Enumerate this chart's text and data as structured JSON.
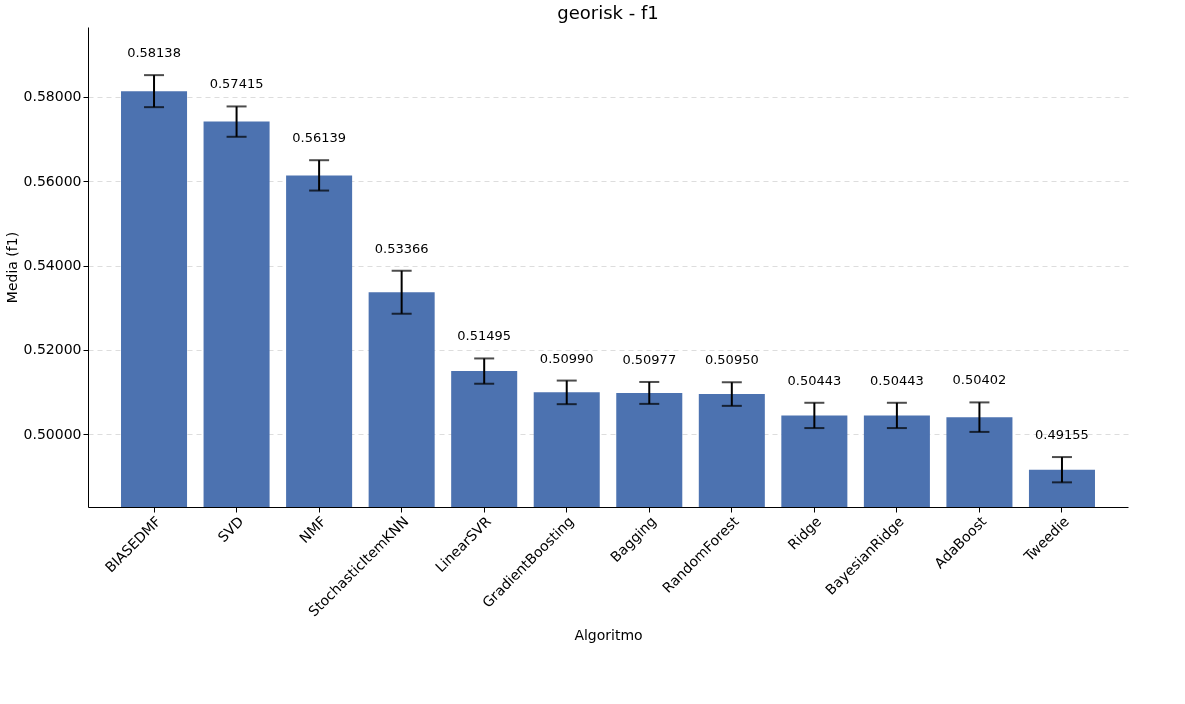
{
  "chart_data": {
    "type": "bar",
    "title": "georisk - f1",
    "xlabel": "Algoritmo",
    "ylabel": "Media (f1)",
    "categories": [
      "BIASEDMF",
      "SVD",
      "NMF",
      "StochasticItemKNN",
      "LinearSVR",
      "GradientBoosting",
      "Bagging",
      "RandomForest",
      "Ridge",
      "BayesianRidge",
      "AdaBoost",
      "Tweedie"
    ],
    "values": [
      0.58138,
      0.57415,
      0.56139,
      0.53366,
      0.51495,
      0.5099,
      0.50977,
      0.5095,
      0.50443,
      0.50443,
      0.50402,
      0.49155
    ],
    "errors": [
      0.0038,
      0.0036,
      0.0036,
      0.0051,
      0.003,
      0.0028,
      0.0026,
      0.0028,
      0.003,
      0.003,
      0.0035,
      0.003
    ],
    "color": "#4c72b0",
    "value_labels": [
      "0.58138",
      "0.57415",
      "0.56139",
      "0.53366",
      "0.51495",
      "0.50990",
      "0.50977",
      "0.50950",
      "0.50443",
      "0.50443",
      "0.50402",
      "0.49155"
    ],
    "ylim": [
      0.4827,
      0.5966
    ],
    "yticks": [
      {
        "value": 0.5,
        "label": "0.50000"
      },
      {
        "value": 0.52,
        "label": "0.52000"
      },
      {
        "value": 0.54,
        "label": "0.54000"
      },
      {
        "value": 0.56,
        "label": "0.56000"
      },
      {
        "value": 0.58,
        "label": "0.58000"
      }
    ],
    "grid": "y"
  }
}
